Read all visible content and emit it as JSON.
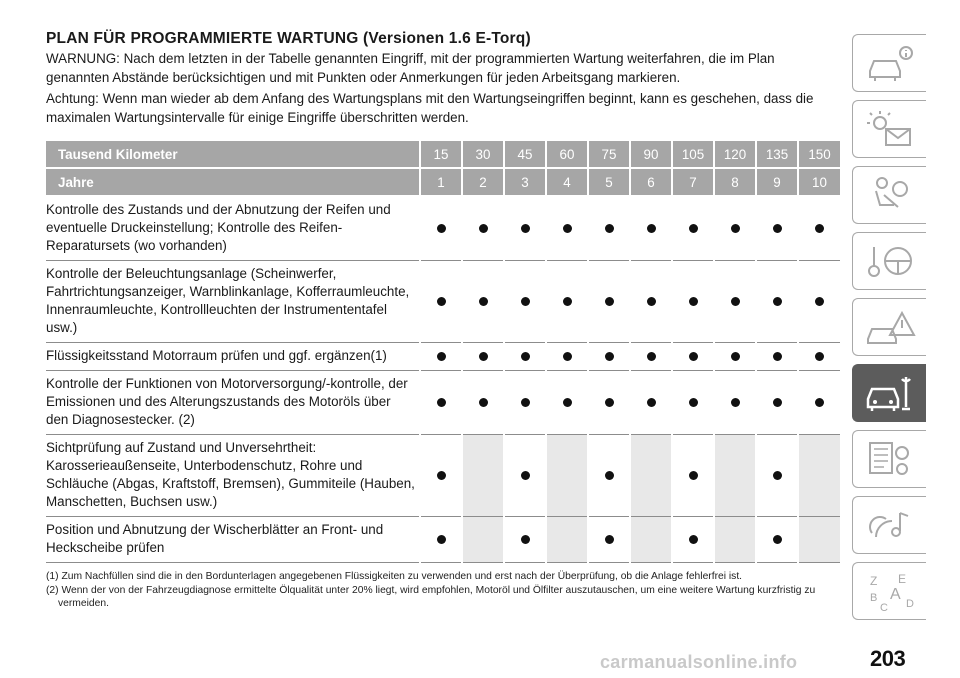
{
  "title": "PLAN FÜR PROGRAMMIERTE WARTUNG (Versionen 1.6 E-Torq)",
  "warning": "WARNUNG: Nach dem letzten in der Tabelle genannten Eingriff, mit der programmierten Wartung weiterfahren, die im Plan genannten Abstände berücksichtigen und mit Punkten oder Anmerkungen für jeden Arbeitsgang markieren.",
  "achtung": "Achtung: Wenn man wieder ab dem Anfang des Wartungsplans mit den Wartungseingriffen beginnt, kann es geschehen, dass die maximalen Wartungsintervalle für einige Eingriffe überschritten werden.",
  "table": {
    "header_km_label": "Tausend Kilometer",
    "km": [
      "15",
      "30",
      "45",
      "60",
      "75",
      "90",
      "105",
      "120",
      "135",
      "150"
    ],
    "header_years_label": "Jahre",
    "years": [
      "1",
      "2",
      "3",
      "4",
      "5",
      "6",
      "7",
      "8",
      "9",
      "10"
    ],
    "rows": [
      {
        "text": "Kontrolle des Zustands und der Abnutzung der Reifen und eventuelle Druckeinstellung; Kontrolle des Reifen-Reparatursets (wo vorhanden)",
        "marks": [
          1,
          1,
          1,
          1,
          1,
          1,
          1,
          1,
          1,
          1
        ]
      },
      {
        "text": "Kontrolle der Beleuchtungsanlage (Scheinwerfer, Fahrtrichtungsanzeiger, Warnblinkanlage, Kofferraumleuchte, Innenraumleuchte, Kontrollleuchten der Instrumententafel usw.)",
        "marks": [
          1,
          1,
          1,
          1,
          1,
          1,
          1,
          1,
          1,
          1
        ]
      },
      {
        "text": "Flüssigkeitsstand Motorraum prüfen und ggf. ergänzen(1)",
        "marks": [
          1,
          1,
          1,
          1,
          1,
          1,
          1,
          1,
          1,
          1
        ]
      },
      {
        "text": "Kontrolle der Funktionen von Motorversorgung/-kontrolle, der Emissionen und des Alterungszustands des Motoröls über den Diagnosestecker. (2)",
        "marks": [
          1,
          1,
          1,
          1,
          1,
          1,
          1,
          1,
          1,
          1
        ]
      },
      {
        "text": "Sichtprüfung auf Zustand und Unversehrtheit: Karosserieaußenseite, Unterbodenschutz, Rohre und Schläuche (Abgas, Kraftstoff, Bremsen), Gummiteile (Hauben, Manschetten, Buchsen usw.)",
        "marks": [
          1,
          0,
          1,
          0,
          1,
          0,
          1,
          0,
          1,
          0
        ]
      },
      {
        "text": "Position und Abnutzung der Wischerblätter an Front- und Heckscheibe prüfen",
        "marks": [
          1,
          0,
          1,
          0,
          1,
          0,
          1,
          0,
          1,
          0
        ]
      }
    ]
  },
  "footnotes": [
    "(1) Zum Nachfüllen sind die in den Bordunterlagen angegebenen Flüssigkeiten zu verwenden und erst nach der Überprüfung, ob die Anlage fehlerfrei ist.",
    "(2) Wenn der von der Fahrzeugdiagnose ermittelte Ölqualität unter 20% liegt, wird empfohlen, Motoröl und Ölfilter auszutauschen, um eine weitere Wartung kurzfristig zu vermeiden."
  ],
  "sidebar_tabs": [
    {
      "icon": "car-info-icon",
      "active": false
    },
    {
      "icon": "warning-lights-mail-icon",
      "active": false
    },
    {
      "icon": "seat-airbag-icon",
      "active": false
    },
    {
      "icon": "key-steering-wheel-icon",
      "active": false
    },
    {
      "icon": "crash-triangle-icon",
      "active": false
    },
    {
      "icon": "car-wrench-icon",
      "active": true
    },
    {
      "icon": "spec-sheet-gears-icon",
      "active": false
    },
    {
      "icon": "multimedia-note-icon",
      "active": false
    },
    {
      "icon": "alphabet-index-icon",
      "active": false
    }
  ],
  "page_number": "203",
  "watermark": "carmanualsonline.info",
  "colors": {
    "header_bg": "#a6a6a6",
    "off_cell": "#e8e8e8",
    "active_tab": "#5c5c5c"
  }
}
